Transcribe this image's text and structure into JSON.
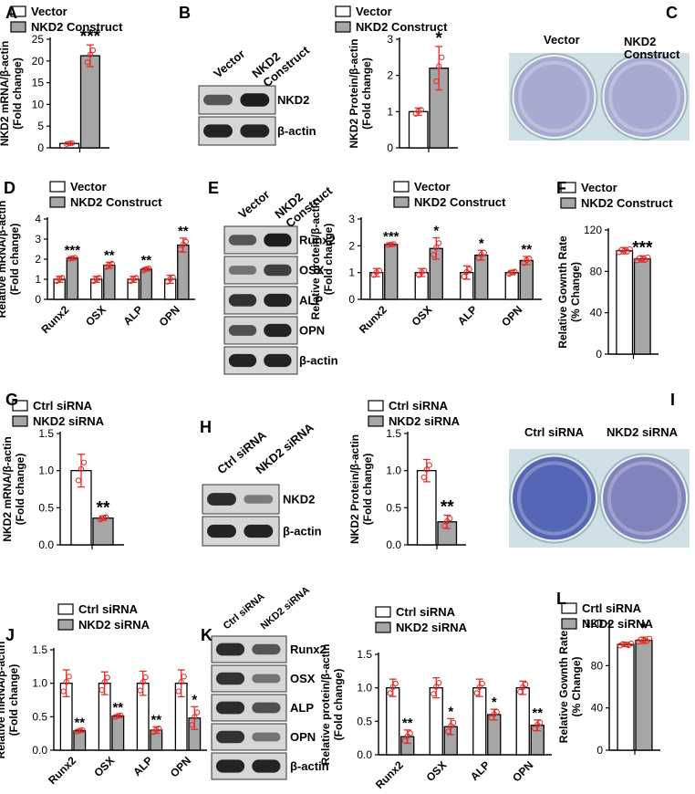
{
  "figure": {
    "panel_letters": [
      "A",
      "B",
      "C",
      "D",
      "E",
      "F",
      "G",
      "H",
      "I",
      "J",
      "K",
      "L"
    ]
  },
  "colors": {
    "control_bar": "#ffffff",
    "treated_bar": "#a6a6a6",
    "error_bar": "#e0302c",
    "axis": "#000000",
    "blot_bg": "#d6d6d6",
    "blot_band": "#151515",
    "well_bg": "#cfe0e6",
    "stain_light": "#6d6fb2",
    "stain_dark": "#3b4ca8"
  },
  "blots": {
    "B": {
      "lanes": [
        "Vector",
        "NKD2 Construct"
      ],
      "rows": [
        "NKD2",
        "β-actin"
      ],
      "intensity": [
        [
          0.55,
          0.95
        ],
        [
          0.9,
          0.9
        ]
      ]
    },
    "E": {
      "lanes": [
        "Vector",
        "NKD2 Construct"
      ],
      "rows": [
        "Runx2",
        "OSX",
        "ALP",
        "OPN",
        "β-actin"
      ],
      "intensity": [
        [
          0.55,
          0.95
        ],
        [
          0.35,
          0.7
        ],
        [
          0.8,
          0.9
        ],
        [
          0.6,
          0.9
        ],
        [
          0.9,
          0.9
        ]
      ]
    },
    "H": {
      "lanes": [
        "Ctrl siRNA",
        "NKD2 siRNA"
      ],
      "rows": [
        "NKD2",
        "β-actin"
      ],
      "intensity": [
        [
          0.85,
          0.3
        ],
        [
          0.9,
          0.9
        ]
      ]
    },
    "K": {
      "lanes": [
        "Ctrl siRNA",
        "NKD2 siRNA"
      ],
      "rows": [
        "Runx2",
        "OSX",
        "ALP",
        "OPN",
        "β-actin"
      ],
      "intensity": [
        [
          0.85,
          0.55
        ],
        [
          0.8,
          0.35
        ],
        [
          0.85,
          0.6
        ],
        [
          0.8,
          0.35
        ],
        [
          0.9,
          0.9
        ]
      ]
    }
  },
  "stains": {
    "C": {
      "labels": [
        "Vector",
        "NKD2 Construct"
      ]
    },
    "I": {
      "labels": [
        "Ctrl siRNA",
        "NKD2 siRNA"
      ]
    }
  },
  "chart_data": [
    {
      "panel": "A",
      "type": "bar",
      "ylabel": "NKD2 mRNA/β-actin\n(Fold change)",
      "ylim": [
        0,
        25
      ],
      "yticks": [
        0,
        5,
        10,
        15,
        20,
        25
      ],
      "categories": [
        ""
      ],
      "series": [
        {
          "name": "Vector",
          "values": [
            1.0
          ],
          "err": [
            0.2
          ]
        },
        {
          "name": "NKD2 Construct",
          "values": [
            21.2
          ],
          "err": [
            2.5
          ]
        }
      ],
      "significance": [
        "***"
      ],
      "legend": "top-left"
    },
    {
      "panel": "B",
      "type": "bar",
      "ylabel": "NKD2 Protein/β-actin\n(Fold change)",
      "ylim": [
        0,
        3
      ],
      "yticks": [
        0,
        1,
        2,
        3
      ],
      "categories": [
        ""
      ],
      "series": [
        {
          "name": "Vector",
          "values": [
            1.0
          ],
          "err": [
            0.1
          ]
        },
        {
          "name": "NKD2 Construct",
          "values": [
            2.2
          ],
          "err": [
            0.6
          ]
        }
      ],
      "significance": [
        "*"
      ],
      "legend": "top-left"
    },
    {
      "panel": "D",
      "type": "bar",
      "ylabel": "Relative mRNA/β-actin\n(Fold change)",
      "ylim": [
        0,
        4
      ],
      "yticks": [
        0,
        1,
        2,
        3,
        4
      ],
      "categories": [
        "Runx2",
        "OSX",
        "ALP",
        "OPN"
      ],
      "series": [
        {
          "name": "Vector",
          "values": [
            1.0,
            1.0,
            1.0,
            1.0
          ],
          "err": [
            0.15,
            0.15,
            0.15,
            0.2
          ]
        },
        {
          "name": "NKD2 Construct",
          "values": [
            2.05,
            1.7,
            1.5,
            2.7
          ],
          "err": [
            0.05,
            0.15,
            0.08,
            0.35
          ]
        }
      ],
      "significance": [
        "***",
        "**",
        "**",
        "**"
      ],
      "legend": "top-left"
    },
    {
      "panel": "E",
      "type": "bar",
      "ylabel": "Relative protein/β-actin\n(Fold change)",
      "ylim": [
        0,
        3
      ],
      "yticks": [
        0,
        1,
        2,
        3
      ],
      "categories": [
        "Runx2",
        "OSX",
        "ALP",
        "OPN"
      ],
      "series": [
        {
          "name": "Vector",
          "values": [
            1.0,
            1.0,
            1.0,
            1.0
          ],
          "err": [
            0.15,
            0.15,
            0.25,
            0.08
          ]
        },
        {
          "name": "NKD2 Construct",
          "values": [
            2.05,
            1.9,
            1.65,
            1.45
          ],
          "err": [
            0.03,
            0.4,
            0.18,
            0.15
          ]
        }
      ],
      "significance": [
        "***",
        "*",
        "*",
        "**"
      ],
      "legend": "top-left"
    },
    {
      "panel": "F",
      "type": "bar",
      "ylabel": "Relative Gownth Rate\n(% Change)",
      "ylim": [
        0,
        120
      ],
      "yticks": [
        0,
        40,
        80,
        120
      ],
      "categories": [
        ""
      ],
      "series": [
        {
          "name": "Vector",
          "values": [
            100
          ],
          "err": [
            3
          ]
        },
        {
          "name": "NKD2 Construct",
          "values": [
            92
          ],
          "err": [
            3
          ]
        }
      ],
      "significance": [
        "***"
      ],
      "legend": "top-left",
      "points": true
    },
    {
      "panel": "G",
      "type": "bar",
      "ylabel": "NKD2 mRNA/β-actin\n(Fold change)",
      "ylim": [
        0,
        1.5
      ],
      "yticks": [
        0.0,
        0.5,
        1.0,
        1.5
      ],
      "categories": [
        ""
      ],
      "series": [
        {
          "name": "Ctrl siRNA",
          "values": [
            1.0
          ],
          "err": [
            0.22
          ]
        },
        {
          "name": "NKD2 siRNA",
          "values": [
            0.36
          ],
          "err": [
            0.03
          ]
        }
      ],
      "significance": [
        "**"
      ],
      "legend": "top-left"
    },
    {
      "panel": "H",
      "type": "bar",
      "ylabel": "NKD2 Protein/β-actin\n(Fold change)",
      "ylim": [
        0,
        1.5
      ],
      "yticks": [
        0.0,
        0.5,
        1.0,
        1.5
      ],
      "categories": [
        ""
      ],
      "series": [
        {
          "name": "Ctrl siRNA",
          "values": [
            1.0
          ],
          "err": [
            0.15
          ]
        },
        {
          "name": "NKD2 siRNA",
          "values": [
            0.31
          ],
          "err": [
            0.09
          ]
        }
      ],
      "significance": [
        "**"
      ],
      "legend": "top-left"
    },
    {
      "panel": "J",
      "type": "bar",
      "ylabel": "Relative mRNA/β-actin\n(Fold change)",
      "ylim": [
        0,
        1.5
      ],
      "yticks": [
        0.0,
        0.5,
        1.0,
        1.5
      ],
      "categories": [
        "Runx2",
        "OSX",
        "ALP",
        "OPN"
      ],
      "series": [
        {
          "name": "Ctrl siRNA",
          "values": [
            1.0,
            1.0,
            1.0,
            1.0
          ],
          "err": [
            0.2,
            0.17,
            0.18,
            0.2
          ]
        },
        {
          "name": "NKD2 siRNA",
          "values": [
            0.29,
            0.51,
            0.3,
            0.48
          ],
          "err": [
            0.02,
            0.02,
            0.05,
            0.17
          ]
        }
      ],
      "significance": [
        "**",
        "**",
        "**",
        "*"
      ],
      "legend": "top-left"
    },
    {
      "panel": "K",
      "type": "bar",
      "ylabel": "Relative protein/β-actin\n(Fold change)",
      "ylim": [
        0,
        1.5
      ],
      "yticks": [
        0.0,
        0.5,
        1.0,
        1.5
      ],
      "categories": [
        "Runx2",
        "OSX",
        "ALP",
        "OPN"
      ],
      "series": [
        {
          "name": "Ctrl siRNA",
          "values": [
            1.0,
            1.0,
            1.0,
            1.0
          ],
          "err": [
            0.13,
            0.15,
            0.13,
            0.1
          ]
        },
        {
          "name": "NKD2 siRNA",
          "values": [
            0.27,
            0.42,
            0.6,
            0.44
          ],
          "err": [
            0.1,
            0.12,
            0.08,
            0.08
          ]
        }
      ],
      "significance": [
        "**",
        "*",
        "*",
        "**"
      ],
      "legend": "top-left"
    },
    {
      "panel": "L",
      "type": "bar",
      "ylabel": "Relative Gownth Rate\n(% Change)",
      "ylim": [
        0,
        120
      ],
      "yticks": [
        0,
        40,
        80,
        120
      ],
      "categories": [
        ""
      ],
      "series": [
        {
          "name": "Crtl siRNA",
          "values": [
            100
          ],
          "err": [
            2
          ]
        },
        {
          "name": "NKD2 siRNA",
          "values": [
            104
          ],
          "err": [
            3
          ]
        }
      ],
      "significance": [
        "*"
      ],
      "legend": "top-left",
      "points": true
    }
  ]
}
